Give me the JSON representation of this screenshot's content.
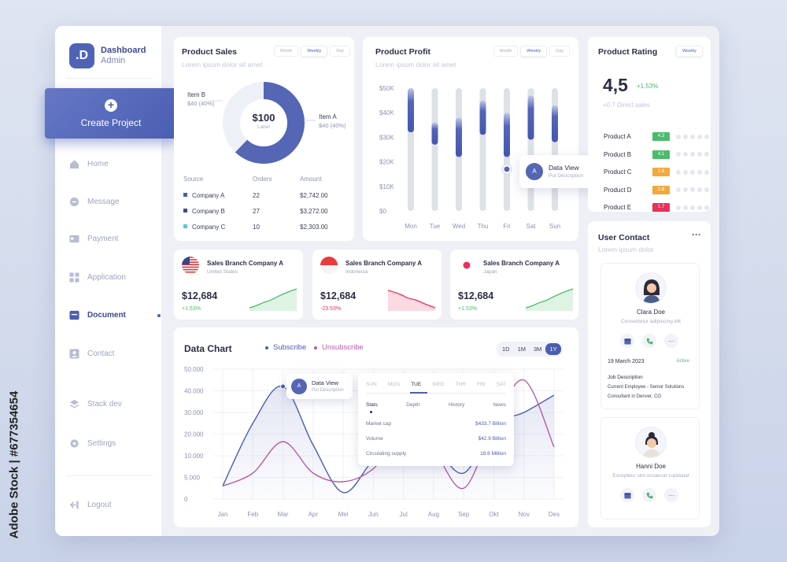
{
  "watermark": {
    "side_text": "Adobe Stock | #677354654"
  },
  "sidebar": {
    "brand_mark": ".D",
    "brand_title": "Dashboard",
    "brand_subtitle": "Admin",
    "create_label": "Create Project",
    "items": [
      {
        "label": "Home",
        "icon": "home-icon"
      },
      {
        "label": "Message",
        "icon": "message-icon"
      },
      {
        "label": "Payment",
        "icon": "payment-icon"
      },
      {
        "label": "Application",
        "icon": "grid-icon"
      },
      {
        "label": "Document",
        "icon": "document-icon",
        "active": true
      },
      {
        "label": "Contact",
        "icon": "contact-icon"
      },
      {
        "label": "Stack dev",
        "icon": "layers-icon"
      },
      {
        "label": "Settings",
        "icon": "gear-icon"
      }
    ],
    "logout_label": "Logout"
  },
  "product_sales": {
    "title": "Product Sales",
    "subtitle": "Lorem ipsum dolor sit amet",
    "periods": [
      "Month",
      "Weekly",
      "Day"
    ],
    "active_period": "Weekly",
    "donut_center_value": "$100",
    "donut_center_label": "Label",
    "item_b": {
      "name": "Item B",
      "value": "$40  (40%)"
    },
    "item_a": {
      "name": "Item A",
      "value": "$40  (40%)"
    },
    "table_headers": [
      "Source",
      "Orders",
      "Amount"
    ],
    "rows": [
      {
        "source": "Company A",
        "orders": "22",
        "amount": "$2,742.00",
        "color": "#4a5eb1"
      },
      {
        "source": "Company B",
        "orders": "27",
        "amount": "$3,272.00",
        "color": "#3b4a90"
      },
      {
        "source": "Company C",
        "orders": "10",
        "amount": "$2,303.00",
        "color": "#58c6e6"
      }
    ]
  },
  "product_profit": {
    "title": "Product Profit",
    "subtitle": "Lorem ipsum dolor sit amet",
    "periods": [
      "Month",
      "Weekly",
      "Day"
    ],
    "active_period": "Weekly",
    "popup_avatar": "A",
    "popup_title": "Data View",
    "popup_sub": "Put Description",
    "chart_data": {
      "type": "bar",
      "y_tick_labels": [
        "$0",
        "$10K",
        "$20K",
        "$30K",
        "$40K",
        "$50K"
      ],
      "categories": [
        "Mon",
        "Tue",
        "Wed",
        "Thu",
        "Fri",
        "Sat",
        "Sun"
      ],
      "ylim": [
        0,
        50000
      ],
      "ranges": [
        {
          "low": 32000,
          "high": 50000
        },
        {
          "low": 27000,
          "high": 36000
        },
        {
          "low": 22000,
          "high": 38000
        },
        {
          "low": 31000,
          "high": 45000
        },
        {
          "low": 22000,
          "high": 40000
        },
        {
          "low": 29000,
          "high": 47000
        },
        {
          "low": 28000,
          "high": 43000
        }
      ],
      "marker": {
        "category": "Fri",
        "value": 17000
      }
    }
  },
  "product_rating": {
    "title": "Product Rating",
    "period": "Weekly",
    "score": "4,5",
    "change": "+1.53%",
    "subtext": "+0.7  Direct sales",
    "products": [
      {
        "name": "Product A",
        "score": "4.3",
        "color": "#4cbb6c"
      },
      {
        "name": "Product B",
        "score": "4.1",
        "color": "#4cbb6c"
      },
      {
        "name": "Product C",
        "score": "2.8",
        "color": "#f3a83b"
      },
      {
        "name": "Product D",
        "score": "2.8",
        "color": "#f3a83b"
      },
      {
        "name": "Product E",
        "score": "1.7",
        "color": "#e8315b"
      }
    ]
  },
  "branches": [
    {
      "title": "Sales Branch Company A",
      "country": "United States",
      "value": "$12,684",
      "change": "+1.53%",
      "trend": "up",
      "color": "#4cbb6c",
      "flag": "us-flag-icon"
    },
    {
      "title": "Sales Branch Company A",
      "country": "Indonesia",
      "value": "$12,684",
      "change": "-23.53%",
      "trend": "down",
      "color": "#e8315b",
      "flag": "indonesia-flag-icon"
    },
    {
      "title": "Sales Branch Company A",
      "country": "Japan",
      "value": "$12,684",
      "change": "+1.53%",
      "trend": "up",
      "color": "#4cbb6c",
      "flag": "japan-flag-icon"
    }
  ],
  "data_chart": {
    "title": "Data Chart",
    "legend": [
      {
        "name": "Subscribe",
        "color": "#4a5eb1"
      },
      {
        "name": "Unsubscribe",
        "color": "#b65aa9"
      }
    ],
    "ranges": [
      "1D",
      "1M",
      "3M",
      "1Y"
    ],
    "active_range": "1Y",
    "popup_avatar": "A",
    "popup_title": "Data View",
    "popup_sub": "Put Description",
    "chart_data": {
      "type": "line",
      "x": [
        "Jan",
        "Feb",
        "Mar",
        "Apr",
        "Mei",
        "Jun",
        "Jul",
        "Aug",
        "Sep",
        "Okt",
        "Nov",
        "Des"
      ],
      "y_tick_labels": [
        "0",
        "5.000",
        "10.000",
        "20.000",
        "30.000",
        "40.000",
        "50.000"
      ],
      "ylim": [
        0,
        50000
      ],
      "series": [
        {
          "name": "Subscribe",
          "values": [
            3000,
            25000,
            42000,
            15000,
            1500,
            9000,
            18000,
            14000,
            6000,
            24000,
            30000,
            38000
          ]
        },
        {
          "name": "Unsubscribe",
          "values": [
            3000,
            6000,
            16500,
            6000,
            4000,
            7000,
            20000,
            12000,
            2500,
            24000,
            45000,
            14000
          ]
        }
      ],
      "marker": {
        "x": "Mar",
        "value": 42000
      }
    },
    "stats_popup": {
      "days": [
        "SUN",
        "MON",
        "TUE",
        "WED",
        "THR",
        "FRI",
        "SAT"
      ],
      "active_day": "TUE",
      "tabs": [
        "Stats",
        "Depth",
        "History",
        "News"
      ],
      "rows": [
        {
          "label": "Market cap",
          "value": "$433.7 Billion"
        },
        {
          "label": "Volume",
          "value": "$42.9 Billion"
        },
        {
          "label": "Circulating supply",
          "value": "18.6 Million"
        }
      ]
    }
  },
  "user_contact": {
    "title": "User Contact",
    "subtitle": "Lorem ipsum dolor",
    "contacts": [
      {
        "name": "Clara Doe",
        "role": "Consectetur adipiscing elit",
        "date": "19 March 2023",
        "status": "Active",
        "job_label": "Job Description",
        "job_text_1": "Current Employee - Senior Solutions",
        "job_text_2": "Consultant in Denver, CO"
      },
      {
        "name": "Hanni Doe",
        "role": "Excepteur sint occaecat cupidatat"
      }
    ]
  }
}
